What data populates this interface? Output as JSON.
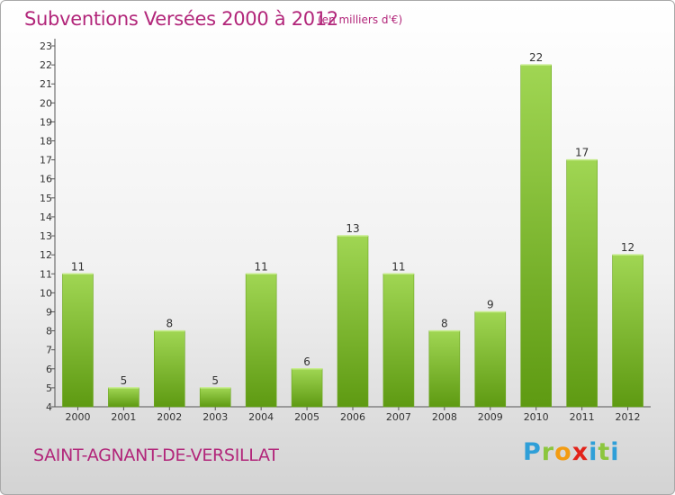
{
  "header": {
    "title": "Subventions Versées 2000 à 2012",
    "subtitle": "(en milliers d'€)"
  },
  "footer": {
    "commune": "SAINT-AGNANT-DE-VERSILLAT",
    "brand": "Proxiti"
  },
  "colors": {
    "accent": "#b2267a",
    "bar_light": "#9ed54c",
    "bar_dark": "#5e9a12"
  },
  "chart_data": {
    "type": "bar",
    "title": "Subventions Versées 2000 à 2012",
    "subtitle": "(en milliers d'€)",
    "xlabel": "",
    "ylabel": "",
    "categories": [
      "2000",
      "2001",
      "2002",
      "2003",
      "2004",
      "2005",
      "2006",
      "2007",
      "2008",
      "2009",
      "2010",
      "2011",
      "2012"
    ],
    "values": [
      11,
      5,
      8,
      5,
      11,
      6,
      13,
      11,
      8,
      9,
      22,
      17,
      12
    ],
    "ylim": [
      4,
      23
    ],
    "yticks": [
      4,
      5,
      6,
      7,
      8,
      9,
      10,
      11,
      12,
      13,
      14,
      15,
      16,
      17,
      18,
      19,
      20,
      21,
      22,
      23
    ],
    "grid": false,
    "data_labels": true
  }
}
